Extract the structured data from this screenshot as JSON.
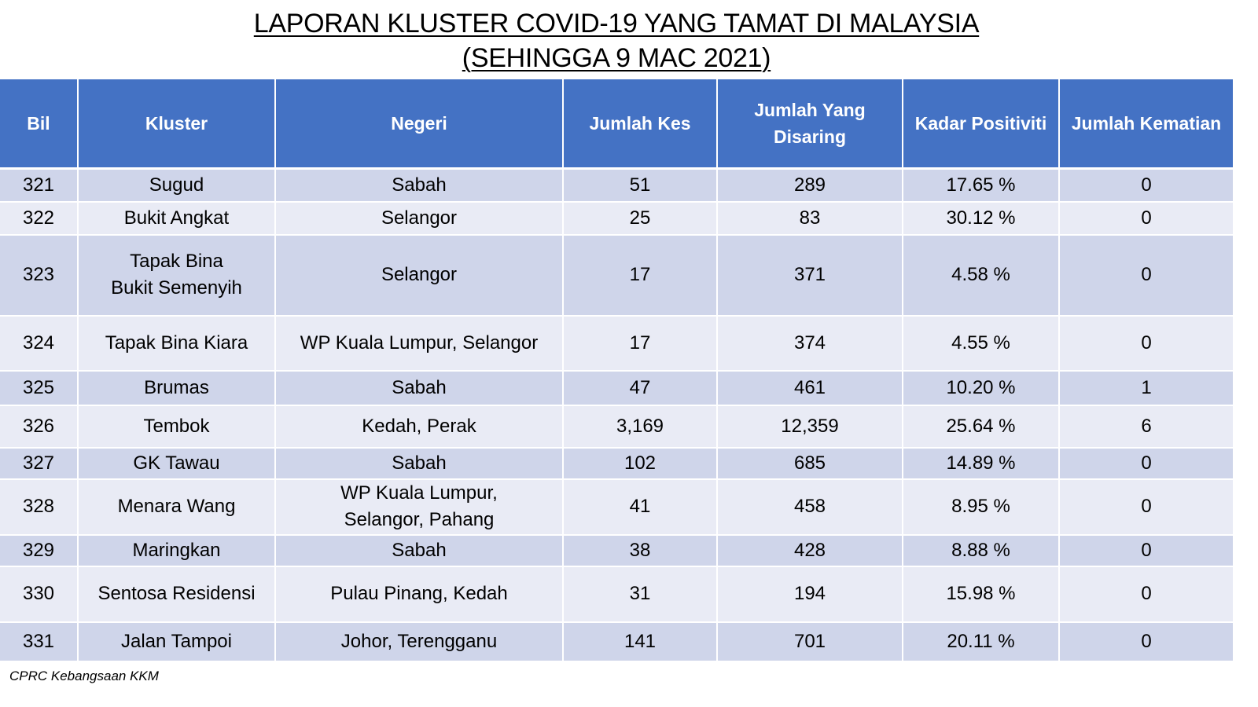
{
  "title": {
    "line1": "LAPORAN KLUSTER COVID-19 YANG TAMAT DI MALAYSIA",
    "line2": "(SEHINGGA  9 MAC 2021)"
  },
  "table": {
    "headers": {
      "bil": "Bil",
      "kluster": "Kluster",
      "negeri": "Negeri",
      "jumlah_kes": "Jumlah Kes",
      "jumlah_disaring_1": "Jumlah Yang",
      "jumlah_disaring_2": "Disaring",
      "kadar_positiviti": "Kadar Positiviti",
      "jumlah_kematian": "Jumlah Kematian"
    },
    "rows": [
      {
        "bil": "321",
        "kluster_1": "Sugud",
        "kluster_2": "",
        "negeri_1": "Sabah",
        "negeri_2": "",
        "kes": "51",
        "disaring": "289",
        "positiviti": "17.65 %",
        "kematian": "0"
      },
      {
        "bil": "322",
        "kluster_1": "Bukit Angkat",
        "kluster_2": "",
        "negeri_1": "Selangor",
        "negeri_2": "",
        "kes": "25",
        "disaring": "83",
        "positiviti": "30.12 %",
        "kematian": "0"
      },
      {
        "bil": "323",
        "kluster_1": "Tapak Bina",
        "kluster_2": "Bukit Semenyih",
        "negeri_1": "Selangor",
        "negeri_2": "",
        "kes": "17",
        "disaring": "371",
        "positiviti": "4.58 %",
        "kematian": "0"
      },
      {
        "bil": "324",
        "kluster_1": "Tapak Bina Kiara",
        "kluster_2": "",
        "negeri_1": "WP Kuala Lumpur, Selangor",
        "negeri_2": "",
        "kes": "17",
        "disaring": "374",
        "positiviti": "4.55 %",
        "kematian": "0"
      },
      {
        "bil": "325",
        "kluster_1": "Brumas",
        "kluster_2": "",
        "negeri_1": "Sabah",
        "negeri_2": "",
        "kes": "47",
        "disaring": "461",
        "positiviti": "10.20 %",
        "kematian": "1"
      },
      {
        "bil": "326",
        "kluster_1": "Tembok",
        "kluster_2": "",
        "negeri_1": "Kedah, Perak",
        "negeri_2": "",
        "kes": "3,169",
        "disaring": "12,359",
        "positiviti": "25.64 %",
        "kematian": "6"
      },
      {
        "bil": "327",
        "kluster_1": "GK Tawau",
        "kluster_2": "",
        "negeri_1": "Sabah",
        "negeri_2": "",
        "kes": "102",
        "disaring": "685",
        "positiviti": "14.89 %",
        "kematian": "0"
      },
      {
        "bil": "328",
        "kluster_1": "Menara Wang",
        "kluster_2": "",
        "negeri_1": "WP Kuala Lumpur,",
        "negeri_2": "Selangor, Pahang",
        "kes": "41",
        "disaring": "458",
        "positiviti": "8.95 %",
        "kematian": "0"
      },
      {
        "bil": "329",
        "kluster_1": "Maringkan",
        "kluster_2": "",
        "negeri_1": "Sabah",
        "negeri_2": "",
        "kes": "38",
        "disaring": "428",
        "positiviti": "8.88 %",
        "kematian": "0"
      },
      {
        "bil": "330",
        "kluster_1": "Sentosa Residensi",
        "kluster_2": "",
        "negeri_1": "Pulau Pinang, Kedah",
        "negeri_2": "",
        "kes": "31",
        "disaring": "194",
        "positiviti": "15.98 %",
        "kematian": "0"
      },
      {
        "bil": "331",
        "kluster_1": "Jalan Tampoi",
        "kluster_2": "",
        "negeri_1": "Johor, Terengganu",
        "negeri_2": "",
        "kes": "141",
        "disaring": "701",
        "positiviti": "20.11 %",
        "kematian": "0"
      }
    ]
  },
  "footer": "CPRC Kebangsaan KKM"
}
